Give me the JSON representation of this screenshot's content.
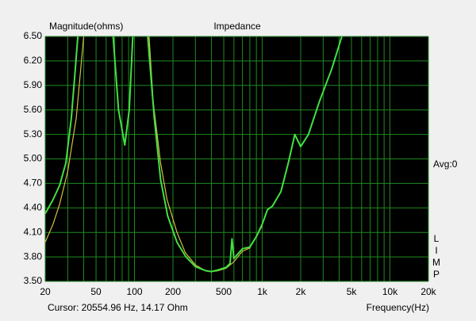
{
  "chart_data": {
    "type": "line",
    "title": "Impedance",
    "y_label": "Magnitude(ohms)",
    "x_label": "Frequency(Hz)",
    "cursor": "Cursor: 20554.96 Hz, 14.17 Ohm",
    "avg": "Avg:0",
    "brand": "LIMP",
    "log_x": true,
    "grid": true,
    "grid_color": "#1f8a1f",
    "background": "#000000",
    "xlim": [
      20,
      20000
    ],
    "xticks": [
      20,
      50,
      100,
      200,
      500,
      {
        "value": 1000,
        "label": "1k"
      },
      {
        "value": 2000,
        "label": "2k"
      },
      {
        "value": 5000,
        "label": "5k"
      },
      {
        "value": 10000,
        "label": "10k"
      },
      {
        "value": 20000,
        "label": "20k"
      }
    ],
    "xgrid": [
      30,
      40,
      60,
      70,
      80,
      90,
      300,
      400,
      600,
      700,
      800,
      900,
      3000,
      4000,
      6000,
      7000,
      8000,
      9000
    ],
    "ylim": [
      3.5,
      6.5
    ],
    "yticks": [
      {
        "value": 3.5,
        "label": "3.50"
      },
      {
        "value": 3.8,
        "label": "3.80"
      },
      {
        "value": 4.1,
        "label": "4.10"
      },
      {
        "value": 4.4,
        "label": "4.40"
      },
      {
        "value": 4.7,
        "label": "4.70"
      },
      {
        "value": 5.0,
        "label": "5.00"
      },
      {
        "value": 5.3,
        "label": "5.30"
      },
      {
        "value": 5.6,
        "label": "5.60"
      },
      {
        "value": 5.9,
        "label": "5.90"
      },
      {
        "value": 6.2,
        "label": "6.20"
      },
      {
        "value": 6.5,
        "label": "6.50"
      }
    ],
    "series": [
      {
        "color": "#d4c040",
        "x": [
          20,
          23,
          26,
          30,
          35,
          40,
          80,
          130,
          140,
          160,
          180,
          215,
          250,
          300,
          360,
          400,
          450,
          520,
          600,
          700,
          800,
          1000
        ],
        "values": [
          3.98,
          4.2,
          4.45,
          4.85,
          5.5,
          6.5,
          null,
          6.5,
          5.7,
          4.95,
          4.5,
          4.1,
          3.85,
          3.7,
          3.63,
          3.62,
          3.63,
          3.66,
          3.74,
          3.87,
          3.91,
          4.18
        ]
      },
      {
        "color": "#44e044",
        "x": [
          20,
          23,
          26,
          29,
          32,
          34,
          36,
          50,
          68,
          75,
          84,
          91,
          97,
          110,
          127,
          143,
          160,
          182,
          215,
          253,
          300,
          362,
          400,
          450,
          520,
          560,
          580,
          600,
          700,
          800,
          900,
          1000,
          1100,
          1200,
          1400,
          1600,
          1800,
          2000,
          2300,
          2800,
          3500,
          4200
        ],
        "values": [
          4.33,
          4.5,
          4.68,
          4.95,
          5.5,
          6.0,
          6.5,
          null,
          6.5,
          5.6,
          5.17,
          5.6,
          6.5,
          null,
          6.5,
          5.5,
          4.75,
          4.3,
          3.98,
          3.8,
          3.68,
          3.63,
          3.62,
          3.64,
          3.67,
          3.72,
          4.02,
          3.78,
          3.9,
          3.92,
          4.05,
          4.2,
          4.38,
          4.42,
          4.6,
          4.95,
          5.3,
          5.15,
          5.3,
          5.7,
          6.1,
          6.5
        ]
      }
    ]
  }
}
